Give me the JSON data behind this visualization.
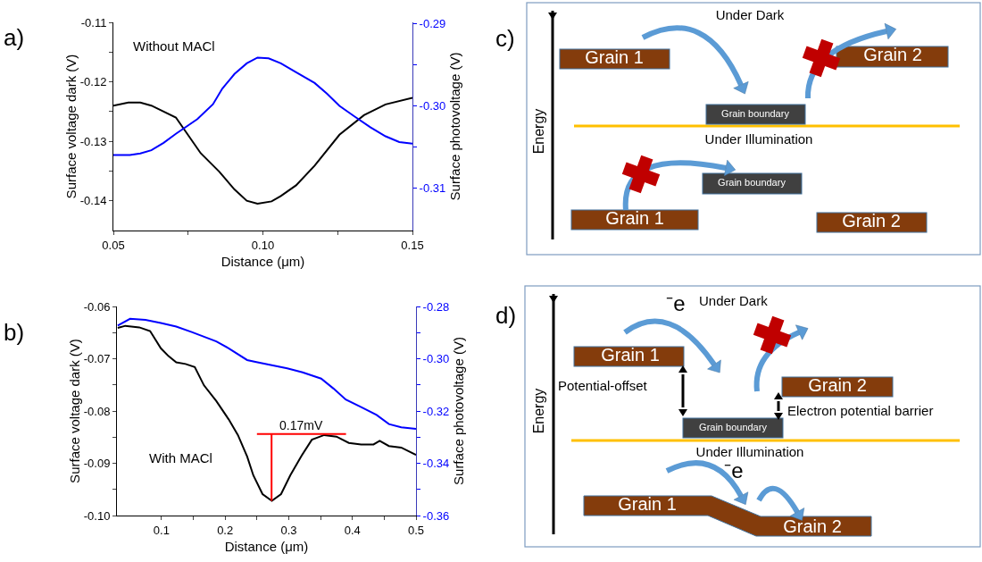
{
  "chart_data": [
    {
      "type": "line",
      "title": "a)",
      "xlabel": "Distance (μm)",
      "ylabel": "Surface voltage dark (V)",
      "y2label": "Surface photovoltage (V)",
      "annotations": [
        "Without MACl"
      ],
      "xlim": [
        0.05,
        0.15
      ],
      "xticks": [
        {
          "value": 0.05,
          "label": "0.05"
        },
        {
          "value": 0.075,
          "label": null
        },
        {
          "value": 0.1,
          "label": "0.10"
        },
        {
          "value": 0.125,
          "label": null
        },
        {
          "value": 0.15,
          "label": "0.15"
        }
      ],
      "ylim": [
        -0.145,
        -0.11
      ],
      "yticks": [
        -0.14,
        {
          "value": -0.135,
          "label": null
        },
        -0.13,
        {
          "value": -0.125,
          "label": null
        },
        -0.12,
        {
          "value": -0.115,
          "label": null
        },
        -0.11
      ],
      "y2lim": [
        -0.3152,
        -0.2898
      ],
      "y2ticks": [
        -0.31,
        {
          "value": -0.305,
          "label": null
        },
        {
          "value": -0.3,
          "label": "-0.30"
        },
        {
          "value": -0.295,
          "label": null
        },
        -0.29
      ],
      "series": [
        {
          "color": "#000000",
          "x": [
            0.05,
            0.055,
            0.059,
            0.0627,
            0.0709,
            0.0792,
            0.0854,
            0.0905,
            0.0946,
            0.0982,
            0.1029,
            0.106,
            0.1111,
            0.1173,
            0.1256,
            0.1338,
            0.141,
            0.15
          ],
          "values": [
            -0.124,
            -0.1235,
            -0.1235,
            -0.124,
            -0.126,
            -0.132,
            -0.1351,
            -0.1381,
            -0.14,
            -0.1405,
            -0.1401,
            -0.1392,
            -0.1374,
            -0.1341,
            -0.1289,
            -0.1256,
            -0.1238,
            -0.1227
          ]
        },
        {
          "color": "#0000ff",
          "axis": "y2",
          "x": [
            0.05,
            0.0555,
            0.059,
            0.0627,
            0.0668,
            0.0709,
            0.0781,
            0.0833,
            0.0864,
            0.0905,
            0.0946,
            0.0982,
            0.1019,
            0.106,
            0.1111,
            0.1173,
            0.1214,
            0.1256,
            0.1307,
            0.1359,
            0.141,
            0.1456,
            0.15
          ],
          "values": [
            -0.306,
            -0.306,
            -0.3058,
            -0.3054,
            -0.3045,
            -0.3034,
            -0.3016,
            -0.2998,
            -0.2979,
            -0.2961,
            -0.2948,
            -0.2941,
            -0.2942,
            -0.2948,
            -0.2959,
            -0.2972,
            -0.2985,
            -0.3,
            -0.3013,
            -0.3026,
            -0.3037,
            -0.3044,
            -0.3046
          ]
        }
      ]
    },
    {
      "type": "line",
      "title": "b)",
      "xlabel": "Distance (μm)",
      "ylabel": "Surface voltage dark (V)",
      "y2label": "Surface photovoltage (V)",
      "annotations": [
        {
          "text": "0.17mV",
          "x": 0.32,
          "y": -0.0844
        },
        "With MACl"
      ],
      "xlim": [
        0.03,
        0.5
      ],
      "xticks": [
        0.1,
        {
          "value": 0.15,
          "label": null
        },
        0.2,
        {
          "value": 0.25,
          "label": null
        },
        0.3,
        {
          "value": 0.35,
          "label": null
        },
        0.4,
        {
          "value": 0.45,
          "label": null
        },
        0.5
      ],
      "ylim": [
        -0.1,
        -0.06
      ],
      "yticks": [
        {
          "value": -0.1,
          "label": "-0.10"
        },
        {
          "value": -0.095,
          "label": null
        },
        -0.09,
        {
          "value": -0.085,
          "label": null
        },
        -0.08,
        {
          "value": -0.075,
          "label": null
        },
        -0.07,
        {
          "value": -0.065,
          "label": null
        },
        -0.06
      ],
      "y2lim": [
        -0.36,
        -0.28
      ],
      "y2ticks": [
        -0.36,
        {
          "value": -0.35,
          "label": null
        },
        -0.34,
        {
          "value": -0.33,
          "label": null
        },
        -0.32,
        {
          "value": -0.31,
          "label": null
        },
        {
          "value": -0.3,
          "label": "-0.30"
        },
        {
          "value": -0.29,
          "label": null
        },
        -0.28
      ],
      "series": [
        {
          "color": "#000000",
          "x": [
            0.0312,
            0.0433,
            0.0651,
            0.0821,
            0.099,
            0.1111,
            0.1232,
            0.1378,
            0.1523,
            0.1668,
            0.1862,
            0.2056,
            0.2201,
            0.2346,
            0.2443,
            0.2588,
            0.2734,
            0.2879,
            0.3024,
            0.3194,
            0.3363,
            0.3557,
            0.375,
            0.3944,
            0.4138,
            0.4332,
            0.4429,
            0.4574,
            0.4768,
            0.5
          ],
          "values": [
            -0.0641,
            -0.0637,
            -0.064,
            -0.0647,
            -0.068,
            -0.0695,
            -0.0707,
            -0.071,
            -0.0716,
            -0.0751,
            -0.0781,
            -0.0816,
            -0.0846,
            -0.0887,
            -0.0923,
            -0.0959,
            -0.0972,
            -0.0959,
            -0.0923,
            -0.0887,
            -0.0855,
            -0.0846,
            -0.0849,
            -0.0861,
            -0.0864,
            -0.0864,
            -0.0857,
            -0.0867,
            -0.087,
            -0.0884
          ]
        },
        {
          "color": "#0000ff",
          "axis": "y2",
          "x": [
            0.0312,
            0.0506,
            0.0748,
            0.099,
            0.1232,
            0.1475,
            0.1862,
            0.2056,
            0.2346,
            0.2492,
            0.2734,
            0.2976,
            0.3218,
            0.3509,
            0.3703,
            0.3896,
            0.4138,
            0.438,
            0.4574,
            0.4768,
            0.5
          ],
          "values": [
            -0.2873,
            -0.2847,
            -0.2851,
            -0.2863,
            -0.2877,
            -0.2898,
            -0.2934,
            -0.296,
            -0.3005,
            -0.3013,
            -0.3025,
            -0.3037,
            -0.3052,
            -0.3076,
            -0.3114,
            -0.3156,
            -0.3185,
            -0.3215,
            -0.325,
            -0.3262,
            -0.3268
          ]
        },
        {
          "color": "#ff0000",
          "x": [
            0.25,
            0.39
          ],
          "values": [
            -0.0844,
            -0.0844
          ]
        },
        {
          "color": "#ff0000",
          "x": [
            0.273,
            0.273
          ],
          "values": [
            -0.0844,
            -0.0972
          ]
        }
      ]
    },
    {
      "type": "other",
      "title": "c)",
      "annotations": [
        "Under Dark",
        "Grain 1",
        "Grain 2",
        "Grain boundary",
        "Under Illumination",
        "Grain boundary",
        "Grain 1",
        "Grain 2",
        "Energy"
      ]
    },
    {
      "type": "other",
      "title": "d)",
      "annotations": [
        "Under Dark",
        "⁻e",
        "Grain 1",
        "Potential-offset",
        "Grain 2",
        "Electron potential barrier",
        "Grain boundary",
        "Under Illumination",
        "⁻e",
        "Grain 1",
        "Grain 2",
        "Energy"
      ]
    }
  ]
}
